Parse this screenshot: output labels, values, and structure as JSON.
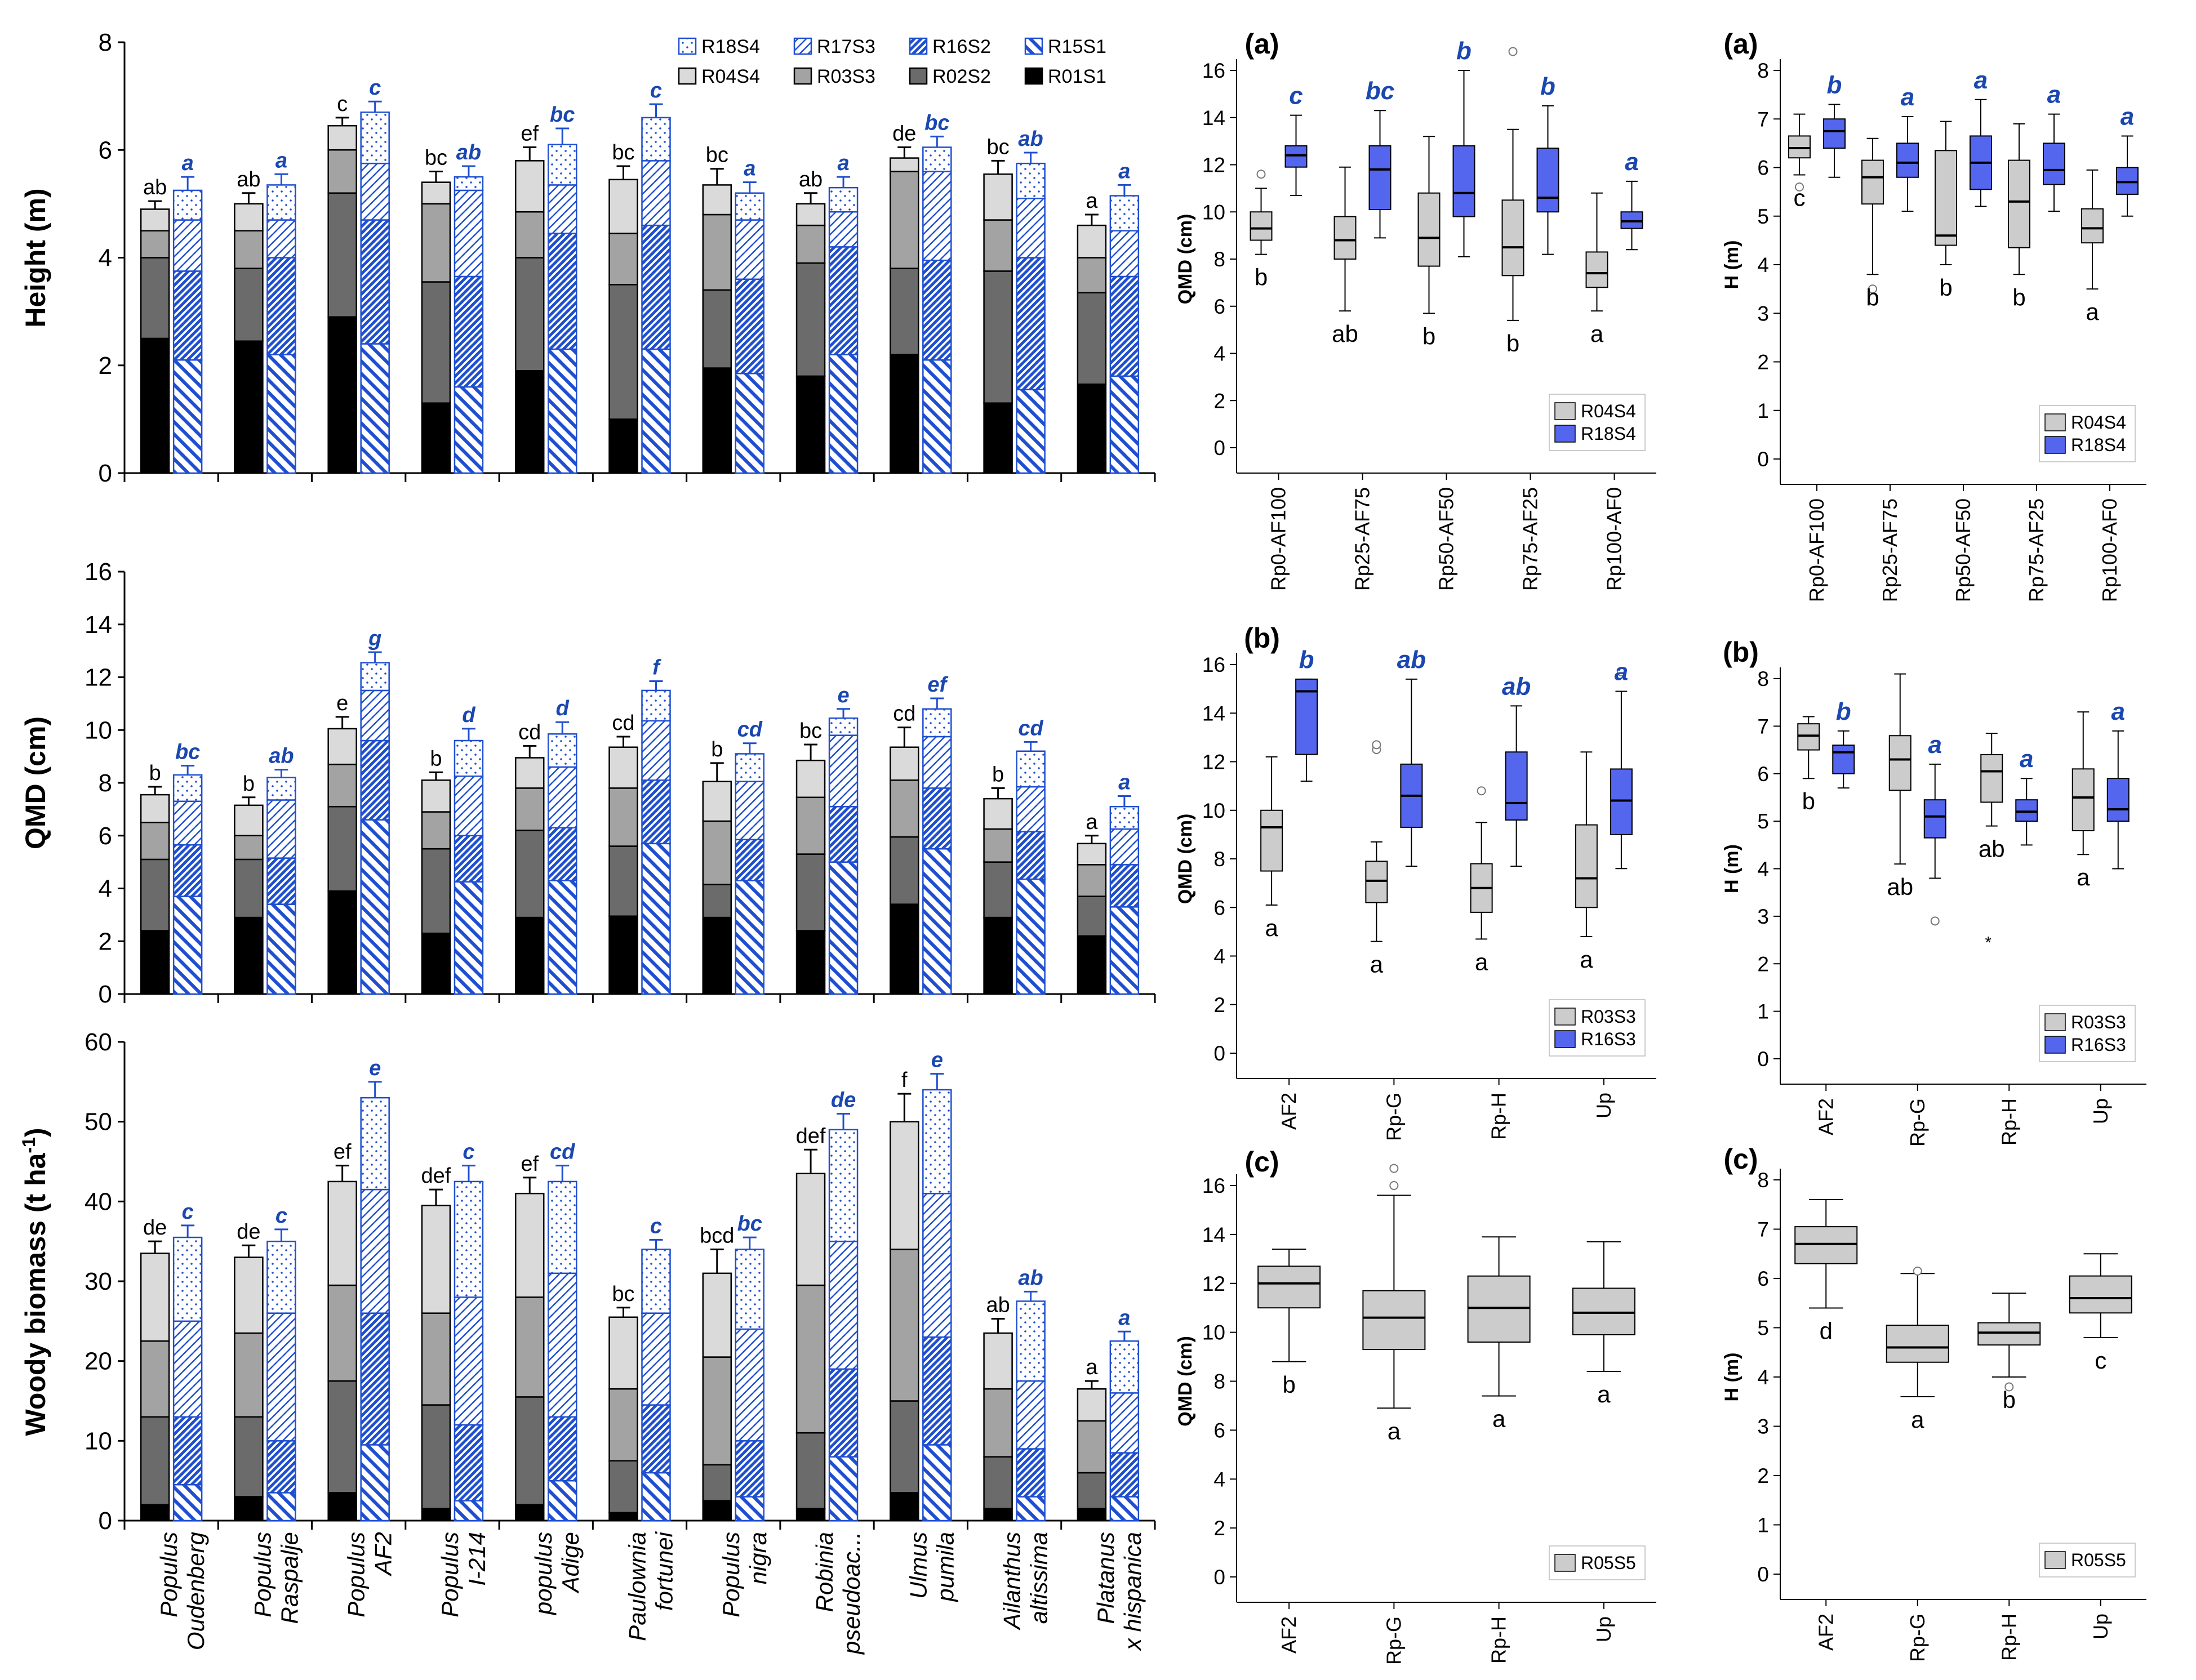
{
  "legend_left": [
    {
      "label": "R18S4",
      "style": "b_dots"
    },
    {
      "label": "R17S3",
      "style": "b_hatch_fwd"
    },
    {
      "label": "R16S2",
      "style": "b_hatch_dense"
    },
    {
      "label": "R15S1",
      "style": "b_hatch_back"
    },
    {
      "label": "R04S4",
      "style": "g_light"
    },
    {
      "label": "R03S3",
      "style": "g_mid"
    },
    {
      "label": "R02S2",
      "style": "g_dark"
    },
    {
      "label": "R01S1",
      "style": "g_black"
    }
  ],
  "species": [
    [
      "Populus",
      "Oudenberg"
    ],
    [
      "Populus",
      "Raspalje"
    ],
    [
      "Populus",
      "AF2"
    ],
    [
      "Populus",
      "I-214"
    ],
    [
      "populus",
      "Adige"
    ],
    [
      "Paulownia",
      "fortunei"
    ],
    [
      "Populus",
      "nigra"
    ],
    [
      "Robinia",
      "pseudoac..."
    ],
    [
      "Ulmus",
      "pumila"
    ],
    [
      "Ailanthus",
      "altissima"
    ],
    [
      "Platanus",
      "x hispanica"
    ]
  ],
  "colors": {
    "blue": "#1f4fd0",
    "blue_text": "#1a47b0",
    "box_blue": "#5566ee",
    "box_grey": "#cccccc"
  },
  "chart_data": [
    {
      "id": "height",
      "type": "bar",
      "ylabel": "Height (m)",
      "ylim": [
        0,
        8
      ],
      "yticks": [
        0,
        2,
        4,
        6,
        8
      ],
      "series_names": [
        "R01S1",
        "R02S2",
        "R03S3",
        "R04S4",
        "R15S1",
        "R16S2",
        "R17S3",
        "R18S4"
      ],
      "grey": [
        [
          2.5,
          4.0,
          4.5,
          4.9
        ],
        [
          2.45,
          3.8,
          4.5,
          5.0
        ],
        [
          2.9,
          5.2,
          6.0,
          6.45
        ],
        [
          1.3,
          3.55,
          5.0,
          5.4
        ],
        [
          1.9,
          4.0,
          4.85,
          5.8
        ],
        [
          1.0,
          3.5,
          4.45,
          5.45
        ],
        [
          1.95,
          3.4,
          4.8,
          5.35
        ],
        [
          1.8,
          3.9,
          4.6,
          5.0
        ],
        [
          2.2,
          3.8,
          5.6,
          5.85
        ],
        [
          1.3,
          3.75,
          4.7,
          5.55
        ],
        [
          1.65,
          3.35,
          4.0,
          4.6
        ]
      ],
      "grey_err": [
        0.15,
        0.2,
        0.15,
        0.2,
        0.25,
        0.25,
        0.3,
        0.2,
        0.2,
        0.25,
        0.2
      ],
      "grey_letters": [
        "ab",
        "ab",
        "c",
        "bc",
        "ef",
        "bc",
        "bc",
        "ab",
        "de",
        "bc",
        "a"
      ],
      "blue": [
        [
          2.1,
          3.75,
          4.7,
          5.25
        ],
        [
          2.2,
          4.0,
          4.7,
          5.35
        ],
        [
          2.4,
          4.7,
          5.75,
          6.7
        ],
        [
          1.6,
          3.65,
          5.25,
          5.5
        ],
        [
          2.3,
          4.45,
          5.35,
          6.1
        ],
        [
          2.3,
          4.6,
          5.8,
          6.6
        ],
        [
          1.85,
          3.6,
          4.7,
          5.2
        ],
        [
          2.2,
          4.2,
          4.85,
          5.3
        ],
        [
          2.1,
          3.95,
          5.6,
          6.05
        ],
        [
          1.55,
          4.0,
          5.1,
          5.75
        ],
        [
          1.8,
          3.65,
          4.5,
          5.15
        ]
      ],
      "blue_err": [
        0.25,
        0.2,
        0.2,
        0.2,
        0.3,
        0.25,
        0.2,
        0.2,
        0.2,
        0.2,
        0.2
      ],
      "blue_letters": [
        "a",
        "a",
        "c",
        "ab",
        "bc",
        "c",
        "a",
        "a",
        "bc",
        "ab",
        "a"
      ]
    },
    {
      "id": "qmd",
      "type": "bar",
      "ylabel": "QMD (cm)",
      "ylim": [
        0,
        16
      ],
      "yticks": [
        0,
        2,
        4,
        6,
        8,
        10,
        12,
        14,
        16
      ],
      "series_names": [
        "R01S1",
        "R02S2",
        "R03S3",
        "R04S4",
        "R15S1",
        "R16S2",
        "R17S3",
        "R18S4"
      ],
      "grey": [
        [
          2.4,
          5.1,
          6.5,
          7.55
        ],
        [
          2.9,
          5.1,
          6.0,
          7.15
        ],
        [
          3.9,
          7.1,
          8.7,
          10.05
        ],
        [
          2.3,
          5.5,
          6.9,
          8.1
        ],
        [
          2.9,
          6.2,
          7.8,
          8.95
        ],
        [
          2.95,
          5.6,
          7.8,
          9.35
        ],
        [
          2.9,
          4.15,
          6.55,
          8.05
        ],
        [
          2.4,
          5.3,
          7.45,
          8.85
        ],
        [
          3.4,
          5.95,
          8.1,
          9.35
        ],
        [
          2.9,
          5.0,
          6.25,
          7.4
        ],
        [
          2.2,
          3.7,
          4.9,
          5.7
        ]
      ],
      "grey_err": [
        0.3,
        0.3,
        0.45,
        0.3,
        0.45,
        0.4,
        0.7,
        0.6,
        0.75,
        0.4,
        0.3
      ],
      "grey_letters": [
        "b",
        "b",
        "e",
        "b",
        "cd",
        "cd",
        "b",
        "bc",
        "cd",
        "b",
        "a"
      ],
      "blue": [
        [
          3.7,
          5.65,
          7.3,
          8.3
        ],
        [
          3.4,
          5.15,
          7.35,
          8.2
        ],
        [
          6.6,
          9.6,
          11.5,
          12.55
        ],
        [
          4.25,
          6.0,
          8.25,
          9.6
        ],
        [
          4.3,
          6.3,
          8.6,
          9.85
        ],
        [
          5.7,
          8.1,
          10.35,
          11.5
        ],
        [
          4.3,
          5.85,
          8.05,
          9.1
        ],
        [
          5.0,
          7.1,
          9.8,
          10.45
        ],
        [
          5.5,
          7.8,
          9.75,
          10.8
        ],
        [
          4.35,
          6.15,
          7.85,
          9.2
        ],
        [
          3.3,
          4.9,
          6.25,
          7.1
        ]
      ],
      "blue_err": [
        0.35,
        0.3,
        0.4,
        0.45,
        0.45,
        0.35,
        0.4,
        0.35,
        0.4,
        0.35,
        0.4
      ],
      "blue_letters": [
        "bc",
        "ab",
        "g",
        "d",
        "d",
        "f",
        "cd",
        "e",
        "ef",
        "cd",
        "a"
      ]
    },
    {
      "id": "biomass",
      "type": "bar",
      "ylabel": "Woody biomass (t ha",
      "ylabel_sup": "-1",
      "ylabel_end": ")",
      "ylim": [
        0,
        60
      ],
      "yticks": [
        0,
        10,
        20,
        30,
        40,
        50,
        60
      ],
      "series_names": [
        "R01S1",
        "R02S2",
        "R03S3",
        "R04S4",
        "R15S1",
        "R16S2",
        "R17S3",
        "R18S4"
      ],
      "grey": [
        [
          2,
          13,
          22.5,
          33.5
        ],
        [
          3,
          13,
          23.5,
          33
        ],
        [
          3.5,
          17.5,
          29.5,
          42.5
        ],
        [
          1.5,
          14.5,
          26,
          39.5
        ],
        [
          2,
          15.5,
          28,
          41
        ],
        [
          1,
          7.5,
          16.5,
          25.5
        ],
        [
          2.5,
          7,
          20.5,
          31
        ],
        [
          1.5,
          11,
          29.5,
          43.5
        ],
        [
          3.5,
          15,
          34,
          50
        ],
        [
          1.5,
          8,
          16.5,
          23.5
        ],
        [
          1.5,
          6,
          12.5,
          16.5
        ]
      ],
      "grey_err": [
        1.5,
        1.5,
        2,
        2,
        2,
        1.2,
        3,
        3,
        3.5,
        1.8,
        1
      ],
      "grey_letters": [
        "de",
        "de",
        "ef",
        "def",
        "ef",
        "bc",
        "bcd",
        "def",
        "f",
        "ab",
        "a"
      ],
      "blue": [
        [
          4.5,
          13,
          25,
          35.5
        ],
        [
          3.5,
          10,
          26,
          35
        ],
        [
          9.5,
          26,
          41.5,
          53
        ],
        [
          2.5,
          12,
          28,
          42.5
        ],
        [
          5,
          13,
          31,
          42.5
        ],
        [
          6,
          14.5,
          26,
          34
        ],
        [
          3,
          10,
          24,
          34
        ],
        [
          8,
          19,
          35,
          49
        ],
        [
          9.5,
          23,
          41,
          54
        ],
        [
          3,
          9,
          17.5,
          27.5
        ],
        [
          3,
          8.5,
          16,
          22.5
        ]
      ],
      "blue_err": [
        1.5,
        1.5,
        2,
        2,
        2,
        1.2,
        1.5,
        2,
        2,
        1.2,
        1.2
      ],
      "blue_letters": [
        "c",
        "c",
        "e",
        "c",
        "cd",
        "c",
        "bc",
        "de",
        "e",
        "ab",
        "a"
      ]
    },
    {
      "id": "a_qmd",
      "type": "box",
      "panel": "(a)",
      "ylabel": "QMD (cm)",
      "ylim": [
        0,
        16
      ],
      "yticks": [
        0,
        2,
        4,
        6,
        8,
        10,
        12,
        14,
        16
      ],
      "categories": [
        "Rp0-AF100",
        "Rp25-AF75",
        "Rp50-AF50",
        "Rp75-AF25",
        "Rp100-AF0"
      ],
      "legend": [
        "R04S4",
        "R18S4"
      ],
      "grey_boxes": [
        [
          8.2,
          8.8,
          9.3,
          10.0,
          11.0
        ],
        [
          5.8,
          8.0,
          8.8,
          9.8,
          11.9
        ],
        [
          5.7,
          7.7,
          8.9,
          10.8,
          13.2
        ],
        [
          5.4,
          7.3,
          8.5,
          10.5,
          13.5
        ],
        [
          5.8,
          6.8,
          7.4,
          8.3,
          10.8
        ]
      ],
      "grey_outliers": [
        [
          11.6
        ],
        [],
        [],
        [
          16.8
        ],
        []
      ],
      "grey_letters": [
        "b",
        "ab",
        "b",
        "b",
        "a"
      ],
      "blue_boxes": [
        [
          10.7,
          11.9,
          12.4,
          12.8,
          14.1
        ],
        [
          8.9,
          10.1,
          11.8,
          12.8,
          14.3
        ],
        [
          8.1,
          9.8,
          10.8,
          12.8,
          16.0
        ],
        [
          8.2,
          10.0,
          10.6,
          12.7,
          14.5
        ],
        [
          8.4,
          9.3,
          9.6,
          10.0,
          11.3
        ]
      ],
      "blue_outliers": [
        [],
        [],
        [],
        [],
        []
      ],
      "blue_letters": [
        "c",
        "bc",
        "b",
        "b",
        "a"
      ]
    },
    {
      "id": "a_h",
      "type": "box",
      "panel": "(a)",
      "ylabel": "H (m)",
      "ylim": [
        0,
        8
      ],
      "yticks": [
        0,
        1,
        2,
        3,
        4,
        5,
        6,
        7,
        8
      ],
      "categories": [
        "Rp0-AF100",
        "Rp25-AF75",
        "Rp50-AF50",
        "Rp75-AF25",
        "Rp100-AF0"
      ],
      "legend": [
        "R04S4",
        "R18S4"
      ],
      "grey_boxes": [
        [
          5.85,
          6.2,
          6.4,
          6.65,
          7.1
        ],
        [
          3.8,
          5.25,
          5.8,
          6.15,
          6.6
        ],
        [
          4.0,
          4.4,
          4.6,
          6.35,
          6.95
        ],
        [
          3.8,
          4.35,
          5.3,
          6.15,
          6.9
        ],
        [
          3.5,
          4.45,
          4.75,
          5.15,
          5.95
        ]
      ],
      "grey_outliers": [
        [
          5.6
        ],
        [
          3.5
        ],
        [],
        [],
        []
      ],
      "grey_letters": [
        "c",
        "b",
        "b",
        "b",
        "a"
      ],
      "blue_boxes": [
        [
          5.8,
          6.4,
          6.75,
          7.0,
          7.3
        ],
        [
          5.1,
          5.8,
          6.1,
          6.5,
          7.05
        ],
        [
          5.2,
          5.55,
          6.1,
          6.65,
          7.4
        ],
        [
          5.1,
          5.65,
          5.95,
          6.5,
          7.1
        ],
        [
          5.0,
          5.45,
          5.7,
          6.0,
          6.65
        ]
      ],
      "blue_outliers": [
        [],
        [],
        [],
        [],
        []
      ],
      "blue_letters": [
        "b",
        "a",
        "a",
        "a",
        "a"
      ]
    },
    {
      "id": "b_qmd",
      "type": "box",
      "panel": "(b)",
      "ylabel": "QMD (cm)",
      "ylim": [
        0,
        16
      ],
      "yticks": [
        0,
        2,
        4,
        6,
        8,
        10,
        12,
        14,
        16
      ],
      "categories": [
        "AF2",
        "Rp-G",
        "Rp-H",
        "Up"
      ],
      "legend": [
        "R03S3",
        "R16S3"
      ],
      "grey_boxes": [
        [
          6.1,
          7.5,
          9.3,
          10.0,
          12.2
        ],
        [
          4.6,
          6.2,
          7.1,
          7.9,
          8.7
        ],
        [
          4.7,
          5.8,
          6.8,
          7.8,
          9.5
        ],
        [
          4.8,
          6.0,
          7.2,
          9.4,
          12.4
        ]
      ],
      "grey_outliers": [
        [],
        [
          12.5,
          12.7
        ],
        [
          10.8
        ],
        []
      ],
      "grey_letters": [
        "a",
        "a",
        "a",
        "a"
      ],
      "blue_boxes": [
        [
          11.2,
          12.3,
          14.9,
          15.4,
          15.4
        ],
        [
          7.7,
          9.3,
          10.6,
          11.9,
          15.4
        ],
        [
          7.7,
          9.6,
          10.3,
          12.4,
          14.3
        ],
        [
          7.6,
          9.0,
          10.4,
          11.7,
          14.9
        ]
      ],
      "blue_outliers": [
        [],
        [],
        [],
        [
          15.7
        ]
      ],
      "blue_letters": [
        "b",
        "ab",
        "ab",
        "a"
      ]
    },
    {
      "id": "b_h",
      "type": "box",
      "panel": "(b)",
      "ylabel": "H (m)",
      "ylim": [
        0,
        8
      ],
      "yticks": [
        0,
        1,
        2,
        3,
        4,
        5,
        6,
        7,
        8
      ],
      "categories": [
        "AF2",
        "Rp-G",
        "Rp-H",
        "Up"
      ],
      "legend": [
        "R03S3",
        "R16S3"
      ],
      "grey_boxes": [
        [
          5.9,
          6.5,
          6.8,
          7.05,
          7.2
        ],
        [
          4.1,
          5.65,
          6.3,
          6.8,
          8.1
        ],
        [
          4.9,
          5.4,
          6.05,
          6.4,
          6.85
        ],
        [
          4.3,
          4.8,
          5.5,
          6.1,
          7.3
        ]
      ],
      "grey_outliers": [
        [],
        [],
        [
          2.45
        ],
        []
      ],
      "grey_letters": [
        "b",
        "ab",
        "ab",
        "a"
      ],
      "blue_boxes": [
        [
          5.7,
          6.0,
          6.45,
          6.6,
          6.9
        ],
        [
          3.8,
          4.65,
          5.1,
          5.45,
          6.2
        ],
        [
          4.5,
          5.0,
          5.2,
          5.45,
          5.9
        ],
        [
          4.0,
          5.0,
          5.25,
          5.9,
          6.9
        ]
      ],
      "blue_outliers": [
        [],
        [
          2.9
        ],
        [],
        []
      ],
      "blue_letters": [
        "b",
        "a",
        "a",
        "a"
      ]
    },
    {
      "id": "c_qmd",
      "type": "box",
      "panel": "(c)",
      "ylabel": "QMD (cm)",
      "ylim": [
        0,
        16
      ],
      "yticks": [
        0,
        2,
        4,
        6,
        8,
        10,
        12,
        14,
        16
      ],
      "categories": [
        "AF2",
        "Rp-G",
        "Rp-H",
        "Up"
      ],
      "legend": [
        "R05S5"
      ],
      "grey_boxes": [
        [
          8.8,
          11.0,
          12.0,
          12.7,
          13.4
        ],
        [
          6.9,
          9.3,
          10.6,
          11.7,
          15.6
        ],
        [
          7.4,
          9.6,
          11.0,
          12.3,
          13.9
        ],
        [
          8.4,
          9.9,
          10.8,
          11.8,
          13.7
        ]
      ],
      "grey_outliers": [
        [],
        [
          16.0,
          16.7
        ],
        [],
        []
      ],
      "grey_letters": [
        "b",
        "a",
        "a",
        "a"
      ]
    },
    {
      "id": "c_h",
      "type": "box",
      "panel": "(c)",
      "ylabel": "H (m)",
      "ylim": [
        0,
        8
      ],
      "yticks": [
        0,
        1,
        2,
        3,
        4,
        5,
        6,
        7,
        8
      ],
      "categories": [
        "AF2",
        "Rp-G",
        "Rp-H",
        "Up"
      ],
      "legend": [
        "R05S5"
      ],
      "grey_boxes": [
        [
          5.4,
          6.3,
          6.7,
          7.05,
          7.6
        ],
        [
          3.6,
          4.3,
          4.6,
          5.05,
          6.1
        ],
        [
          4.0,
          4.65,
          4.9,
          5.1,
          5.7
        ],
        [
          4.8,
          5.3,
          5.6,
          6.05,
          6.5
        ]
      ],
      "grey_outliers": [
        [],
        [
          6.15
        ],
        [
          3.8
        ],
        []
      ],
      "grey_letters": [
        "d",
        "a",
        "b",
        "c"
      ]
    }
  ]
}
